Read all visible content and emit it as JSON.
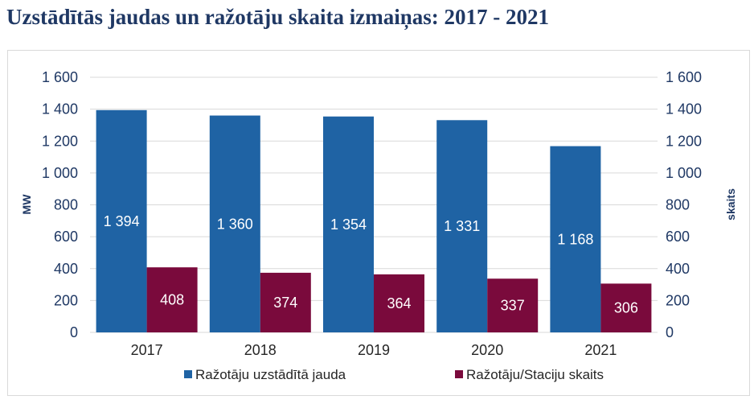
{
  "title": "Uzstādītās jaudas un ražotāju skaita izmaiņas: 2017 - 2021",
  "colors": {
    "series1": "#1f63a4",
    "series2": "#7a0a3c",
    "title": "#1f3864",
    "grid": "#d9d9d9"
  },
  "chart_data": {
    "type": "bar",
    "categories": [
      "2017",
      "2018",
      "2019",
      "2020",
      "2021"
    ],
    "series": [
      {
        "name": "Ražotāju uzstādītā jauda",
        "axis": "left",
        "values": [
          1394,
          1360,
          1354,
          1331,
          1168
        ],
        "labels": [
          "1 394",
          "1 360",
          "1 354",
          "1 331",
          "1 168"
        ]
      },
      {
        "name": "Ražotāju/Staciju skaits",
        "axis": "right",
        "values": [
          408,
          374,
          364,
          337,
          306
        ],
        "labels": [
          "408",
          "374",
          "364",
          "337",
          "306"
        ]
      }
    ],
    "ylabel": "MW",
    "y2label": "skaits",
    "ylim": [
      0,
      1600
    ],
    "y2lim": [
      0,
      1600
    ],
    "yticks": [
      0,
      200,
      400,
      600,
      800,
      1000,
      1200,
      1400,
      1600
    ],
    "ytick_labels": [
      "0",
      "200",
      "400",
      "600",
      "800",
      "1 000",
      "1 200",
      "1 400",
      "1 600"
    ],
    "grid": true,
    "legend": "bottom"
  }
}
